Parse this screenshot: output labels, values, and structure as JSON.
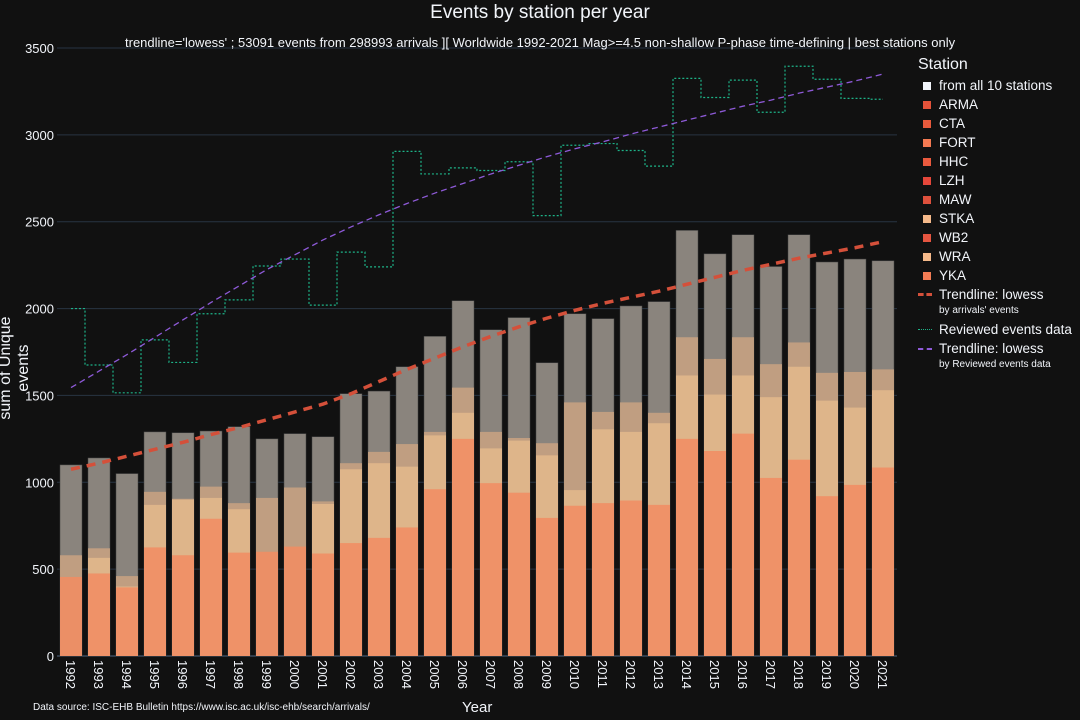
{
  "chart_data": {
    "type": "bar",
    "title": "Events by station per year",
    "subtitle": "trendline='lowess' ; 53091 events from 298993 arrivals ][ Worldwide 1992-2021 Mag>=4.5 non-shallow P-phase time-defining | best stations only",
    "xlabel": "Year",
    "ylabel": "sum of Unique events",
    "ylim": [
      0,
      3500
    ],
    "yticks": [
      "0",
      "500",
      "1000",
      "1500",
      "2000",
      "2500",
      "3000",
      "3500"
    ],
    "grid": true,
    "barmode": "overlay",
    "legend_placement": "right",
    "legend_title": "Station",
    "categories": [
      "1992",
      "1993",
      "1994",
      "1995",
      "1996",
      "1997",
      "1998",
      "1999",
      "2000",
      "2001",
      "2002",
      "2003",
      "2004",
      "2005",
      "2006",
      "2007",
      "2008",
      "2009",
      "2010",
      "2011",
      "2012",
      "2013",
      "2014",
      "2015",
      "2016",
      "2017",
      "2018",
      "2019",
      "2020",
      "2021"
    ],
    "series": [
      {
        "name": "from all 10 stations",
        "color": "#8a847d",
        "values": [
          1100,
          1140,
          1050,
          1290,
          1285,
          1295,
          1320,
          1250,
          1280,
          1262,
          1510,
          1525,
          1665,
          1840,
          2045,
          1878,
          1948,
          1688,
          1970,
          1942,
          2015,
          2040,
          2450,
          2315,
          2425,
          2242,
          2425,
          2268,
          2285,
          2275
        ]
      },
      {
        "name": "STKA",
        "color": "#c9a281",
        "values": [
          580,
          620,
          460,
          945,
          905,
          975,
          880,
          910,
          970,
          890,
          1110,
          1175,
          1220,
          1290,
          1545,
          1290,
          1255,
          1225,
          1460,
          1405,
          1460,
          1400,
          1835,
          1710,
          1835,
          1680,
          1805,
          1630,
          1635,
          1650
        ]
      },
      {
        "name": "WRA",
        "color": "#e3b88c",
        "values": [
          0,
          565,
          400,
          870,
          900,
          910,
          845,
          0,
          0,
          875,
          1075,
          1110,
          1090,
          1270,
          1400,
          1195,
          1240,
          1155,
          955,
          1305,
          1290,
          1340,
          1615,
          1505,
          1615,
          1490,
          1665,
          1470,
          1430,
          1530
        ]
      },
      {
        "name": "YKA",
        "color": "#f28c62",
        "values": [
          455,
          475,
          395,
          625,
          580,
          790,
          595,
          600,
          630,
          590,
          650,
          680,
          740,
          960,
          1250,
          995,
          940,
          795,
          865,
          880,
          895,
          870,
          1250,
          1180,
          1280,
          1025,
          1130,
          920,
          985,
          1085
        ]
      }
    ],
    "legend_items": [
      "from all 10 stations",
      "ARMA",
      "CTA",
      "FORT",
      "HHC",
      "LZH",
      "MAW",
      "STKA",
      "WB2",
      "WRA",
      "YKA"
    ],
    "legend_colors": [
      "#f2f5fa",
      "#e5533a",
      "#e85a3c",
      "#f47a52",
      "#ea5a3e",
      "#e5473a",
      "#dd503c",
      "#f5b98a",
      "#e55540",
      "#f5b98a",
      "#f47d55"
    ],
    "reviewed": {
      "name": "Reviewed events data",
      "color": "#1db388",
      "values": [
        2000,
        1675,
        1515,
        1820,
        1690,
        1970,
        2050,
        2245,
        2285,
        2020,
        2325,
        2240,
        2905,
        2775,
        2810,
        2795,
        2845,
        2535,
        2940,
        2950,
        2910,
        2820,
        3325,
        3215,
        3315,
        3130,
        3395,
        3320,
        3210,
        3205
      ]
    },
    "trend_arrivals": {
      "name": "Trendline: lowess",
      "sub": "by arrivals' events",
      "color": "#d4503a",
      "values": [
        1075,
        1110,
        1150,
        1190,
        1230,
        1275,
        1315,
        1360,
        1405,
        1450,
        1510,
        1580,
        1650,
        1715,
        1780,
        1840,
        1895,
        1945,
        1990,
        2030,
        2065,
        2100,
        2140,
        2180,
        2220,
        2255,
        2290,
        2320,
        2350,
        2385
      ]
    },
    "trend_reviewed": {
      "name": "Trendline: lowess",
      "sub": "by Reviewed events data",
      "color": "#8e5ad8",
      "values": [
        1545,
        1640,
        1735,
        1835,
        1935,
        2035,
        2130,
        2225,
        2310,
        2395,
        2470,
        2540,
        2605,
        2665,
        2720,
        2775,
        2825,
        2875,
        2920,
        2960,
        3005,
        3045,
        3085,
        3125,
        3165,
        3200,
        3240,
        3275,
        3310,
        3350
      ]
    }
  },
  "source": "Data source: ISC-EHB Bulletin  https://www.isc.ac.uk/isc-ehb/search/arrivals/"
}
